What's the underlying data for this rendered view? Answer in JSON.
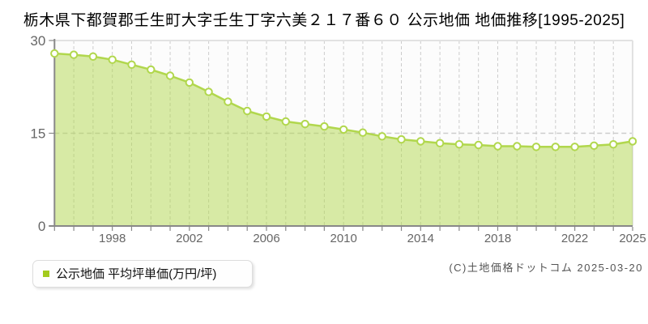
{
  "page": {
    "title": "栃木県下都賀郡壬生町大字壬生丁字六美２１７番６０ 公示地価 地価推移[1995-2025]",
    "copyright": "(C)土地価格ドットコム 2025-03-20"
  },
  "legend": {
    "label": "公示地価 平均坪単価(万円/坪)"
  },
  "chart_data": {
    "type": "area",
    "title": "栃木県下都賀郡壬生町大字壬生丁字六美２１７番６０ 公示地価 地価推移[1995-2025]",
    "x": [
      1995,
      1996,
      1997,
      1998,
      1999,
      2000,
      2001,
      2002,
      2003,
      2004,
      2005,
      2006,
      2007,
      2008,
      2009,
      2010,
      2011,
      2012,
      2013,
      2014,
      2015,
      2016,
      2017,
      2018,
      2019,
      2020,
      2021,
      2022,
      2023,
      2024,
      2025
    ],
    "series": [
      {
        "name": "公示地価 平均坪単価(万円/坪)",
        "values": [
          27.9,
          27.7,
          27.4,
          26.9,
          26.1,
          25.3,
          24.3,
          23.2,
          21.7,
          20.1,
          18.6,
          17.7,
          16.9,
          16.5,
          16.1,
          15.6,
          15.1,
          14.5,
          14.0,
          13.7,
          13.4,
          13.2,
          13.1,
          12.9,
          12.9,
          12.8,
          12.8,
          12.8,
          13.0,
          13.2,
          13.7
        ]
      }
    ],
    "xlabel": "",
    "ylabel": "",
    "ylim": [
      0,
      30
    ],
    "yticks": [
      0,
      15,
      30
    ],
    "xtick_labels": [
      1998,
      2002,
      2006,
      2010,
      2014,
      2018,
      2022,
      2025
    ],
    "grid": {
      "vertical": "dashed-every-year",
      "horizontal_at": 15
    },
    "legend_position": "bottom-left",
    "colors": {
      "line": "#b1d74d",
      "fill": "rgba(177,215,77,0.5)",
      "marker_fill": "#ffffff",
      "legend_marker": "#a3cb1e",
      "grid": "#cccccc",
      "frame": "#e2e2e2",
      "axis": "#888888",
      "tick_label": "#666666",
      "plot_background": "#fcfcfc"
    }
  }
}
